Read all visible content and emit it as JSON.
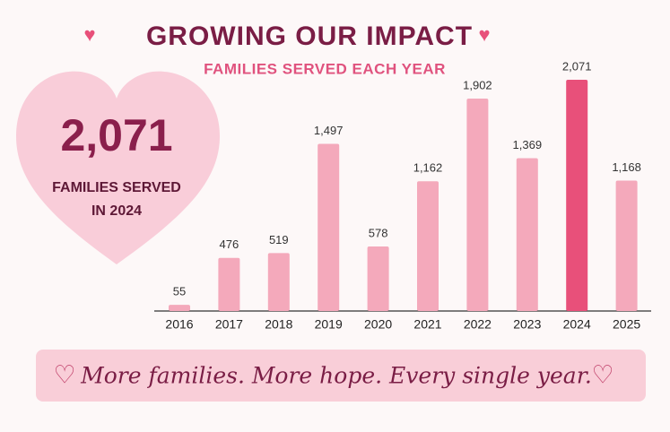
{
  "title": "GROWING OUR IMPACT",
  "callout": {
    "value": "2,071",
    "lines": [
      "FAMILIES SERVED",
      "IN 2024"
    ]
  },
  "banner": "More families. More hope. Every single year.",
  "chart_data": {
    "type": "bar",
    "title": "FAMILIES SERVED EACH YEAR",
    "categories": [
      "2016",
      "2017",
      "2018",
      "2019",
      "2020",
      "2021",
      "2022",
      "2023",
      "2024",
      "2025"
    ],
    "values": [
      55,
      476,
      519,
      1497,
      578,
      1162,
      1902,
      1369,
      2071,
      1168
    ],
    "value_labels": [
      "55",
      "476",
      "519",
      "1,497",
      "578",
      "1,162",
      "1,902",
      "1,369",
      "2,071",
      "1,168"
    ],
    "colors": [
      "#f4a9bb",
      "#f4a9bb",
      "#f4a9bb",
      "#f4a9bb",
      "#f4a9bb",
      "#f4a9bb",
      "#f4a9bb",
      "#f4a9bb",
      "#e8507a",
      "#f4a9bb"
    ]
  }
}
